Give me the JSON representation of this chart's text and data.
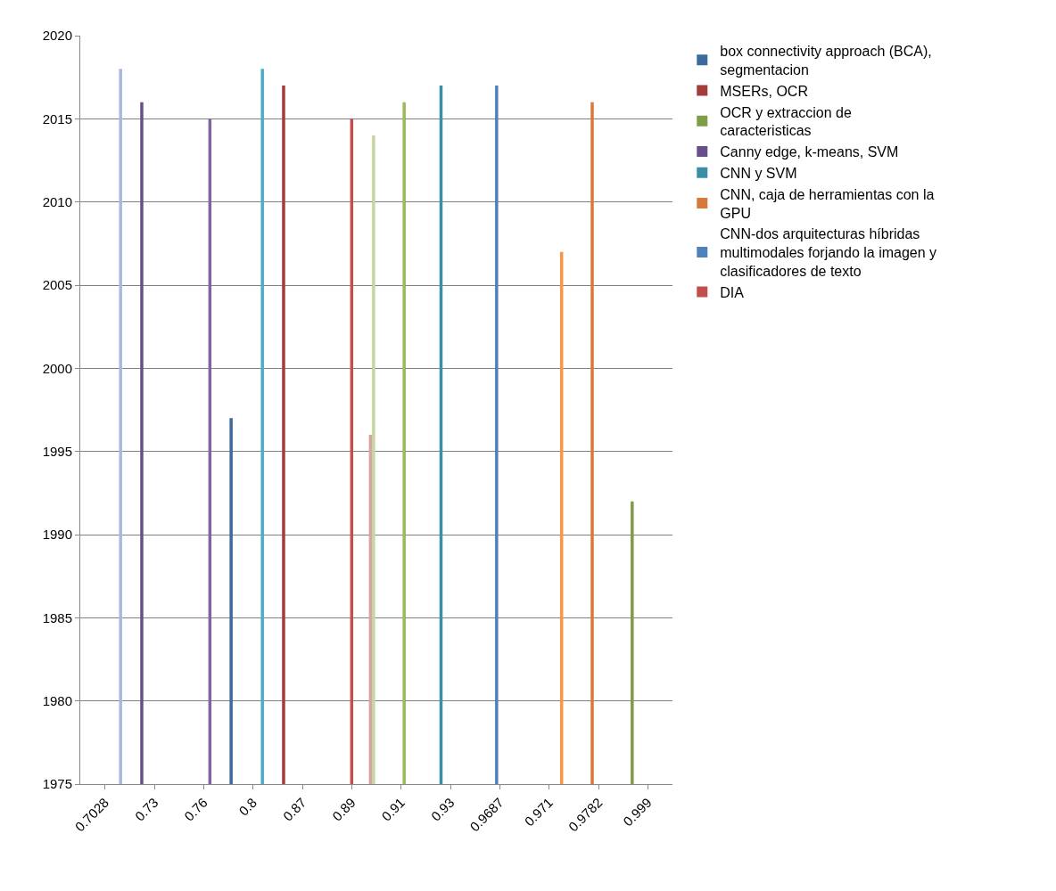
{
  "chart_data": {
    "type": "bar",
    "categories": [
      "0.7028",
      "0.73",
      "0.76",
      "0.8",
      "0.87",
      "0.89",
      "0.91",
      "0.93",
      "0.9687",
      "0.971",
      "0.9782",
      "0.999"
    ],
    "series": [
      {
        "name": "box connectivity approach (BCA), segmentacion",
        "color": "#3c6aa0",
        "values": [
          null,
          null,
          null,
          1997,
          null,
          null,
          null,
          null,
          null,
          null,
          null,
          null
        ]
      },
      {
        "name": "MSERs, OCR",
        "color": "#a33c39",
        "values": [
          null,
          null,
          null,
          null,
          2017,
          null,
          null,
          null,
          null,
          null,
          null,
          null
        ]
      },
      {
        "name": "OCR y extraccion de caracteristicas",
        "color": "#7f9c47",
        "values": [
          null,
          null,
          null,
          null,
          null,
          null,
          null,
          null,
          null,
          null,
          null,
          1992
        ]
      },
      {
        "name": "Canny edge, k-means, SVM",
        "color": "#67508a",
        "values": [
          null,
          2016,
          null,
          null,
          null,
          null,
          null,
          null,
          null,
          null,
          null,
          null
        ]
      },
      {
        "name": "CNN y SVM",
        "color": "#3a8fa6",
        "values": [
          null,
          null,
          null,
          null,
          null,
          null,
          null,
          2017,
          null,
          null,
          null,
          null
        ]
      },
      {
        "name": "CNN, caja de herramientas con la GPU",
        "color": "#d6793a",
        "values": [
          null,
          null,
          null,
          null,
          null,
          null,
          null,
          null,
          null,
          null,
          2016,
          null
        ]
      },
      {
        "name": "CNN-dos arquitecturas híbridas multimodales forjando la imagen y clasificadores de texto",
        "color": "#4f81bd",
        "values": [
          null,
          null,
          null,
          null,
          null,
          null,
          null,
          null,
          2017,
          null,
          null,
          null
        ]
      },
      {
        "name": "DIA",
        "color": "#c0504d",
        "values": [
          null,
          null,
          null,
          null,
          null,
          2015,
          null,
          null,
          null,
          null,
          null,
          null
        ]
      },
      {
        "color": "#9bbb59",
        "values": [
          null,
          null,
          null,
          null,
          null,
          null,
          2016,
          null,
          null,
          null,
          null,
          null
        ]
      },
      {
        "color": "#8064a2",
        "values": [
          null,
          null,
          2015,
          null,
          null,
          null,
          null,
          null,
          null,
          null,
          null,
          null
        ]
      },
      {
        "color": "#4bacc6",
        "values": [
          null,
          null,
          null,
          2018,
          null,
          null,
          null,
          null,
          null,
          null,
          null,
          null
        ]
      },
      {
        "color": "#f79646",
        "values": [
          null,
          null,
          null,
          null,
          null,
          null,
          null,
          null,
          null,
          2007,
          null,
          null
        ]
      },
      {
        "color": "#a7b9dc",
        "values": [
          2018,
          null,
          null,
          null,
          null,
          null,
          null,
          null,
          null,
          null,
          null,
          null
        ]
      },
      {
        "color": "#d9a3a2",
        "values": [
          null,
          null,
          null,
          null,
          null,
          1996,
          null,
          null,
          null,
          null,
          null,
          null
        ]
      },
      {
        "color": "#c4d6a0",
        "values": [
          null,
          null,
          null,
          null,
          null,
          2014,
          null,
          null,
          null,
          null,
          null,
          null
        ]
      }
    ],
    "ylim": [
      1975,
      2020
    ],
    "yticks": [
      1975,
      1980,
      1985,
      1990,
      1995,
      2000,
      2005,
      2010,
      2015,
      2020
    ],
    "grid": "y",
    "legend": "right"
  }
}
